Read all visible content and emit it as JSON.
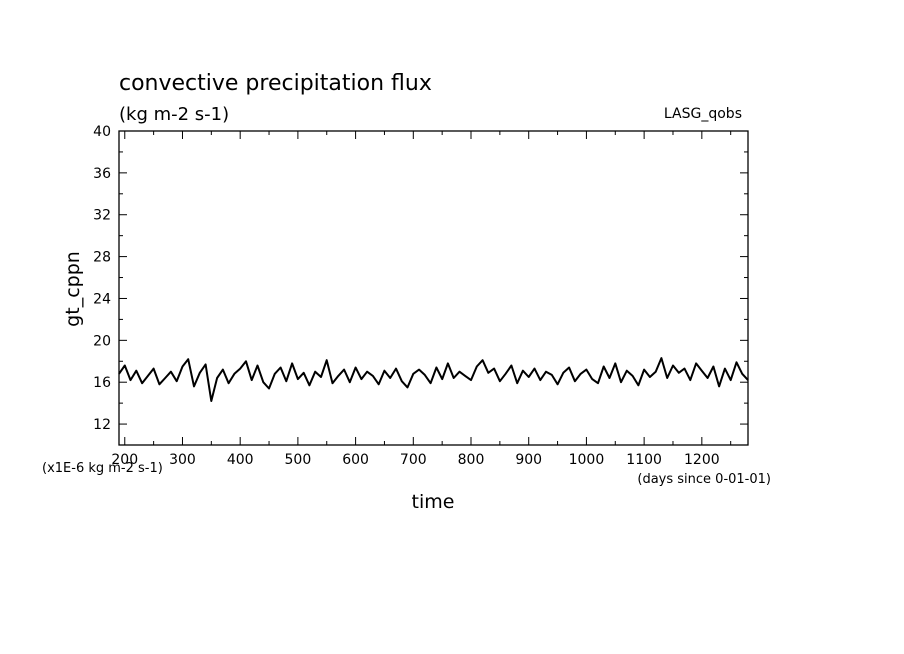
{
  "chart_data": {
    "type": "line",
    "title": "convective precipitation flux",
    "subtitle": "(kg m-2 s-1)",
    "label_right": "LASG_qobs",
    "xlabel": "time",
    "ylabel": "gt_cppn",
    "y_scale_note": "(x1E-6 kg m-2 s-1)",
    "x_unit_note": "(days since 0-01-01)",
    "xlim": [
      190,
      1280
    ],
    "ylim": [
      10,
      40
    ],
    "x_ticks": [
      200,
      300,
      400,
      500,
      600,
      700,
      800,
      900,
      1000,
      1100,
      1200
    ],
    "x_tick_labels": [
      "200",
      "300",
      "400",
      "500",
      "600",
      "700",
      "800",
      "900",
      "1000",
      "1100",
      "1200"
    ],
    "y_ticks": [
      12,
      16,
      20,
      24,
      28,
      32,
      36,
      40
    ],
    "y_tick_labels": [
      "12",
      "16",
      "20",
      "24",
      "28",
      "32",
      "36",
      "40"
    ],
    "series": [
      {
        "x": [
          190,
          200,
          210,
          220,
          230,
          240,
          250,
          260,
          270,
          280,
          290,
          300,
          310,
          320,
          330,
          340,
          350,
          360,
          370,
          380,
          390,
          400,
          410,
          420,
          430,
          440,
          450,
          460,
          470,
          480,
          490,
          500,
          510,
          520,
          530,
          540,
          550,
          560,
          570,
          580,
          590,
          600,
          610,
          620,
          630,
          640,
          650,
          660,
          670,
          680,
          690,
          700,
          710,
          720,
          730,
          740,
          750,
          760,
          770,
          780,
          790,
          800,
          810,
          820,
          830,
          840,
          850,
          860,
          870,
          880,
          890,
          900,
          910,
          920,
          930,
          940,
          950,
          960,
          970,
          980,
          990,
          1000,
          1010,
          1020,
          1030,
          1040,
          1050,
          1060,
          1070,
          1080,
          1090,
          1100,
          1110,
          1120,
          1130,
          1140,
          1150,
          1160,
          1170,
          1180,
          1190,
          1200,
          1210,
          1220,
          1230,
          1240,
          1250,
          1260,
          1270,
          1280
        ],
        "y": [
          16.8,
          17.6,
          16.2,
          17.1,
          15.9,
          16.6,
          17.3,
          15.8,
          16.4,
          17.0,
          16.1,
          17.5,
          18.2,
          15.6,
          16.9,
          17.7,
          14.2,
          16.4,
          17.2,
          15.9,
          16.8,
          17.3,
          18.0,
          16.2,
          17.6,
          16.0,
          15.4,
          16.8,
          17.4,
          16.1,
          17.8,
          16.3,
          16.9,
          15.7,
          17.0,
          16.5,
          18.1,
          15.9,
          16.6,
          17.2,
          16.0,
          17.4,
          16.3,
          17.0,
          16.6,
          15.8,
          17.1,
          16.4,
          17.3,
          16.1,
          15.5,
          16.8,
          17.2,
          16.7,
          15.9,
          17.4,
          16.3,
          17.8,
          16.4,
          17.0,
          16.6,
          16.2,
          17.5,
          18.1,
          16.9,
          17.3,
          16.1,
          16.8,
          17.6,
          15.9,
          17.1,
          16.5,
          17.3,
          16.2,
          17.0,
          16.7,
          15.8,
          16.9,
          17.4,
          16.1,
          16.8,
          17.2,
          16.3,
          15.9,
          17.5,
          16.4,
          17.8,
          16.0,
          17.1,
          16.6,
          15.7,
          17.2,
          16.5,
          17.0,
          18.3,
          16.4,
          17.6,
          16.9,
          17.3,
          16.2,
          17.8,
          17.1,
          16.4,
          17.5,
          15.6,
          17.3,
          16.2,
          17.9,
          16.8,
          16.2
        ]
      }
    ]
  }
}
